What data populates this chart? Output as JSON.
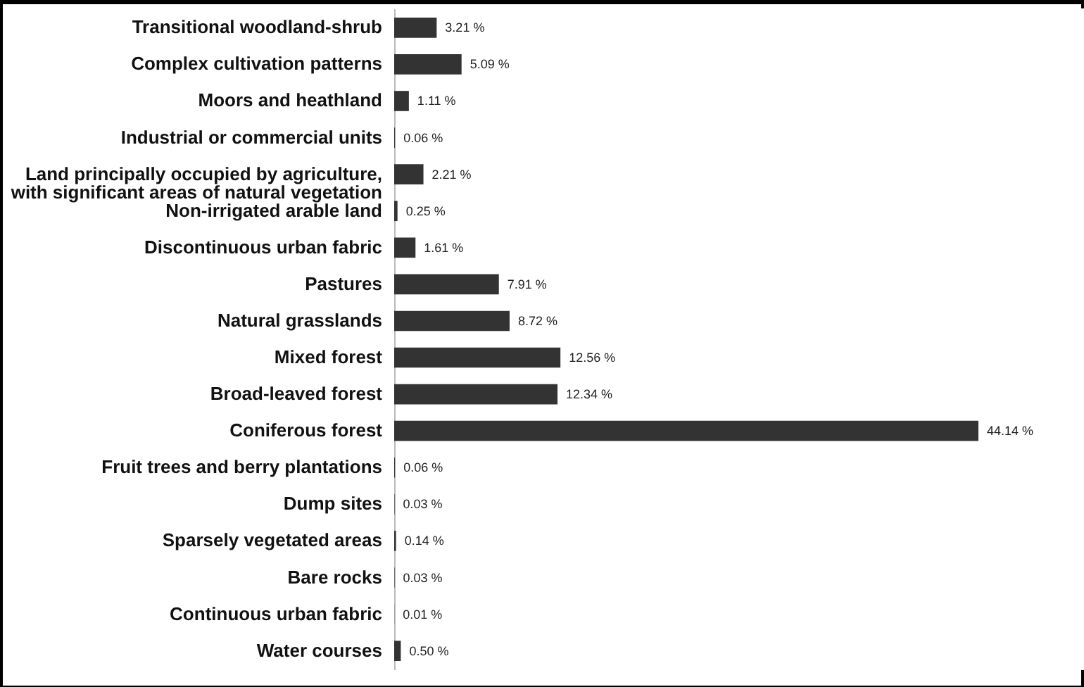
{
  "chart_data": {
    "type": "bar",
    "orientation": "horizontal",
    "tick_labels": "y",
    "categories": [
      "Transitional woodland-shrub",
      "Complex cultivation patterns",
      "Moors and heathland",
      "Industrial or commercial units",
      "Land principally occupied by agriculture,\nwith significant areas of natural vegetation",
      "Non-irrigated arable land",
      "Discontinuous urban fabric",
      "Pastures",
      "Natural grasslands",
      "Mixed forest",
      "Broad-leaved forest",
      "Coniferous forest",
      "Fruit trees and berry plantations",
      "Dump sites",
      "Sparsely vegetated areas",
      "Bare rocks",
      "Continuous urban fabric",
      "Water courses"
    ],
    "values": [
      3.21,
      5.09,
      1.11,
      0.06,
      2.21,
      0.25,
      1.61,
      7.91,
      8.72,
      12.56,
      12.34,
      44.14,
      0.06,
      0.03,
      0.14,
      0.03,
      0.01,
      0.5
    ],
    "value_labels": [
      "3.21 %",
      "5.09 %",
      "1.11 %",
      "0.06 %",
      "2.21 %",
      "0.25 %",
      "1.61 %",
      "7.91 %",
      "8.72 %",
      "12.56 %",
      "12.34 %",
      "44.14 %",
      "0.06 %",
      "0.03 %",
      "0.14 %",
      "0.03 %",
      "0.01 %",
      "0.50 %"
    ],
    "color": "#333333"
  }
}
